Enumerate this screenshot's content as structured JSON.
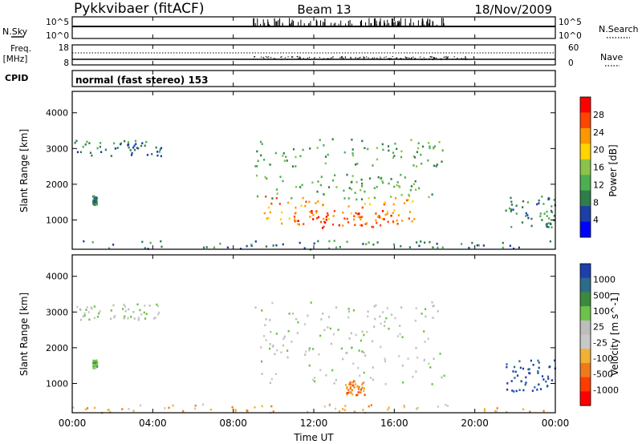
{
  "header": {
    "station": "Pykkvibaer (fitACF)",
    "beam": "Beam 13",
    "date": "18/Nov/2009"
  },
  "strip_labels": {
    "nsky": "N.Sky",
    "nsky_top": "10^5",
    "nsky_bottom": "10^0",
    "nsearch_top": "10^5",
    "nsearch_bottom": "10^0",
    "nsearch": "N.Search",
    "freq_line1": "Freq.",
    "freq_line2": "[MHz]",
    "freq_top": "18",
    "freq_bottom": "8",
    "nave_top": "60",
    "nave_bottom": "0",
    "nave": "Nave",
    "cpid": "CPID",
    "cpid_text": "normal (fast stereo) 153"
  },
  "xaxis": {
    "label": "Time UT",
    "ticks": [
      "00:00",
      "04:00",
      "08:00",
      "12:00",
      "16:00",
      "20:00",
      "00:00"
    ]
  },
  "colors": {
    "power_scale": [
      "#0000ff",
      "#1c40a6",
      "#2e7d4a",
      "#4caf50",
      "#8bc34a",
      "#ffd400",
      "#ff9800",
      "#ff4500",
      "#ff0000"
    ],
    "velocity_scale": [
      "#1c3fae",
      "#2e6b8a",
      "#3b8a3e",
      "#6cc24a",
      "#bdbdbd",
      "#c8c8c8",
      "#f2b134",
      "#f07a1a",
      "#ff3c00",
      "#ff0000"
    ]
  },
  "chart_data": [
    {
      "type": "heatmap",
      "title": "",
      "xlabel": "",
      "ylabel": "Slant Range [km]",
      "xlim": [
        0,
        24
      ],
      "ylim": [
        180,
        4600
      ],
      "yticks": [
        "1000",
        "2000",
        "3000",
        "4000"
      ],
      "colorbar": {
        "label": "Power [dB]",
        "ticks": [
          "4",
          "8",
          "12",
          "16",
          "20",
          "24",
          "28"
        ],
        "range": [
          0,
          30
        ]
      },
      "regions": [
        {
          "t0": 0.0,
          "t1": 4.4,
          "r0": 2800,
          "r1": 3250,
          "value": 8
        },
        {
          "t0": 1.0,
          "t1": 1.2,
          "r0": 1450,
          "r1": 1700,
          "value": 8
        },
        {
          "t0": 9.0,
          "t1": 18.5,
          "r0": 2500,
          "r1": 3300,
          "value": 10
        },
        {
          "t0": 9.0,
          "t1": 18.0,
          "r0": 1600,
          "r1": 2300,
          "value": 13
        },
        {
          "t0": 9.5,
          "t1": 17.0,
          "r0": 900,
          "r1": 1700,
          "value": 24
        },
        {
          "t0": 11.0,
          "t1": 16.0,
          "r0": 800,
          "r1": 1300,
          "value": 28
        },
        {
          "t0": 21.5,
          "t1": 24.0,
          "r0": 800,
          "r1": 1700,
          "value": 8
        },
        {
          "t0": 0.0,
          "t1": 24.0,
          "r0": 180,
          "r1": 450,
          "value": 6
        }
      ]
    },
    {
      "type": "heatmap",
      "title": "",
      "xlabel": "Time UT",
      "ylabel": "Slant Range [km]",
      "xlim": [
        0,
        24
      ],
      "ylim": [
        180,
        4600
      ],
      "yticks": [
        "1000",
        "2000",
        "3000",
        "4000"
      ],
      "colorbar": {
        "label": "Velocity [m s^-1]",
        "ticks": [
          "1000",
          "500",
          "100",
          "25",
          "-25",
          "-100",
          "-500",
          "-1000"
        ],
        "range": [
          -1000,
          1000
        ]
      },
      "regions": [
        {
          "t0": 0.0,
          "t1": 4.4,
          "r0": 2800,
          "r1": 3250,
          "value": 0
        },
        {
          "t0": 1.0,
          "t1": 1.2,
          "r0": 1450,
          "r1": 1700,
          "value": 60
        },
        {
          "t0": 9.0,
          "t1": 18.5,
          "r0": 1000,
          "r1": 3300,
          "value": 0
        },
        {
          "t0": 13.5,
          "t1": 14.5,
          "r0": 700,
          "r1": 1100,
          "value": -150
        },
        {
          "t0": 21.5,
          "t1": 24.0,
          "r0": 800,
          "r1": 1700,
          "value": 600
        },
        {
          "t0": 0.0,
          "t1": 24.0,
          "r0": 180,
          "r1": 450,
          "value": -60
        }
      ]
    }
  ]
}
